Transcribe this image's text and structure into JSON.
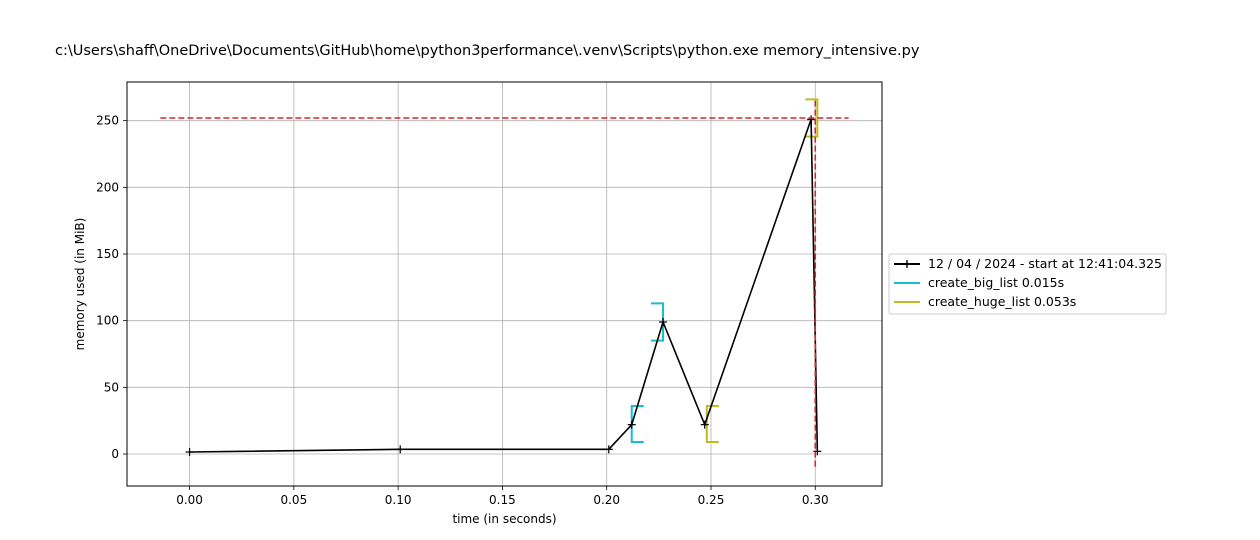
{
  "chart_data": {
    "type": "line",
    "title": "c:\\Users\\shaff\\OneDrive\\Documents\\GitHub\\home\\python3performance\\.venv\\Scripts\\python.exe memory_intensive.py",
    "xlabel": "time (in seconds)",
    "ylabel": "memory used (in MiB)",
    "xlim": [
      -0.03,
      0.332
    ],
    "ylim": [
      -24,
      279
    ],
    "xticks": [
      0.0,
      0.05,
      0.1,
      0.15,
      0.2,
      0.25,
      0.3
    ],
    "xtick_labels": [
      "0.00",
      "0.05",
      "0.10",
      "0.15",
      "0.20",
      "0.25",
      "0.30"
    ],
    "yticks": [
      0,
      50,
      100,
      150,
      200,
      250
    ],
    "ytick_labels": [
      "0",
      "50",
      "100",
      "150",
      "200",
      "250"
    ],
    "grid": true,
    "legend_position": "outside-right",
    "series": [
      {
        "name": "12 / 04 / 2024 - start at 12:41:04.325",
        "color": "#000000",
        "marker": "+",
        "x": [
          0.0,
          0.101,
          0.201,
          0.212,
          0.227,
          0.247,
          0.298,
          0.301
        ],
        "y": [
          1.5,
          3.5,
          3.5,
          22,
          99,
          22,
          251,
          2
        ]
      }
    ],
    "brackets": [
      {
        "series": "create_big_list 0.015s",
        "color": "#17becf",
        "x_start": 0.212,
        "x_end": 0.227,
        "start_y": [
          9,
          36
        ],
        "end_y": [
          85,
          113
        ]
      },
      {
        "series": "create_huge_list 0.053s",
        "color": "#bcbd22",
        "x_start": 0.248,
        "x_end": 0.301,
        "start_y": [
          9,
          36
        ],
        "end_y": [
          238,
          266
        ]
      }
    ],
    "legend_entries": [
      {
        "label": "12 / 04 / 2024 - start at 12:41:04.325",
        "color": "#000000",
        "marker": "+"
      },
      {
        "label": "create_big_list 0.015s",
        "color": "#17becf"
      },
      {
        "label": "create_huge_list 0.053s",
        "color": "#bcbd22"
      }
    ],
    "max_lines": {
      "color": "#d62728",
      "h_y": 252,
      "h_x_range": [
        -0.014,
        0.316
      ],
      "v_x": 0.3,
      "v_y_range": [
        -11,
        265
      ]
    }
  }
}
